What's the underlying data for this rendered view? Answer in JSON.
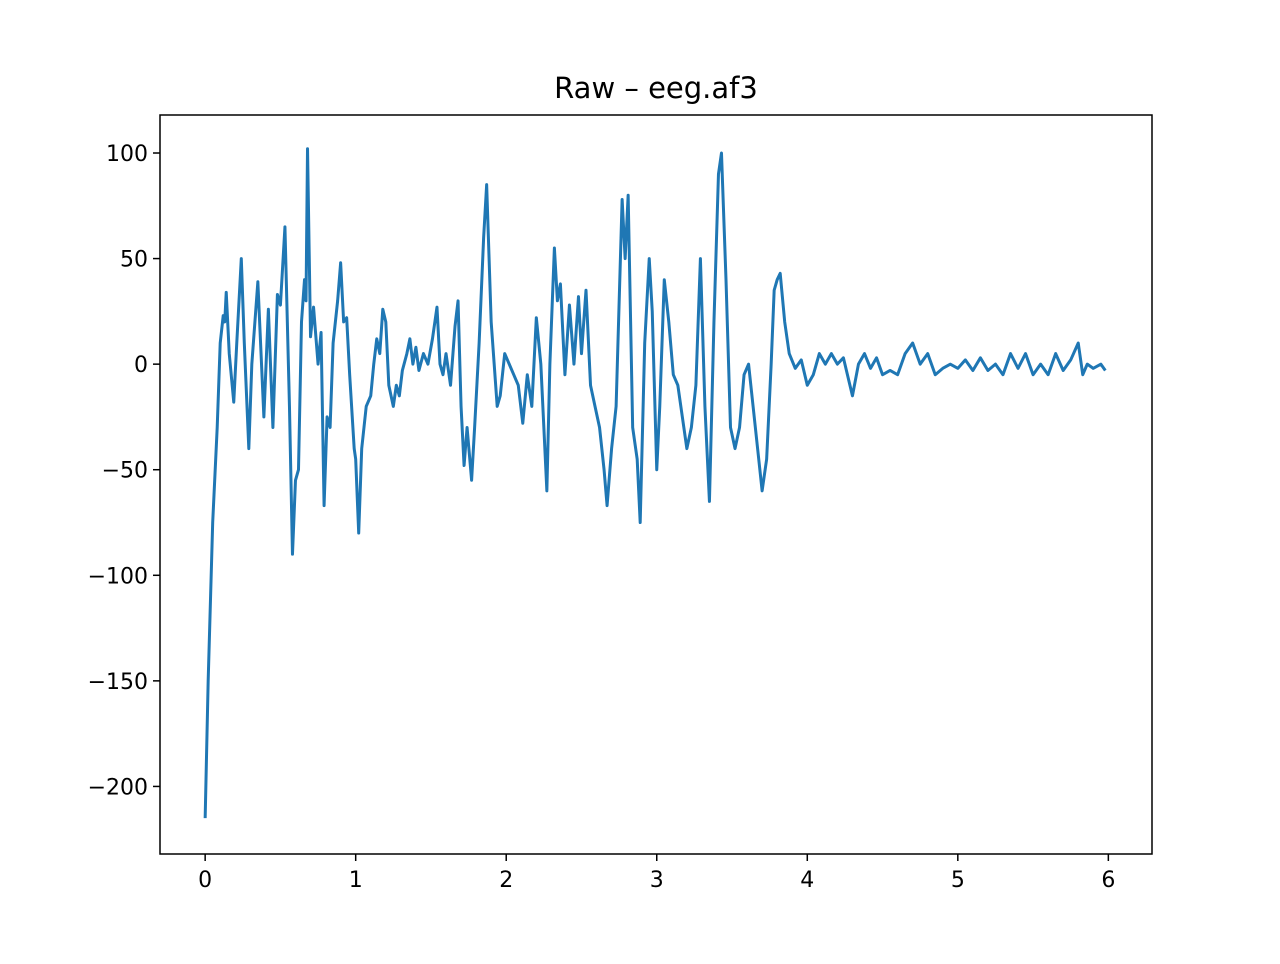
{
  "chart_data": {
    "type": "line",
    "title": "Raw – eeg.af3",
    "x": [
      0,
      0.02,
      0.05,
      0.08,
      0.1,
      0.12,
      0.13,
      0.14,
      0.16,
      0.19,
      0.21,
      0.24,
      0.26,
      0.29,
      0.31,
      0.35,
      0.39,
      0.42,
      0.45,
      0.48,
      0.5,
      0.53,
      0.56,
      0.58,
      0.6,
      0.62,
      0.64,
      0.66,
      0.67,
      0.68,
      0.7,
      0.72,
      0.75,
      0.77,
      0.79,
      0.81,
      0.83,
      0.85,
      0.88,
      0.9,
      0.92,
      0.94,
      0.96,
      0.99,
      1.0,
      1.02,
      1.04,
      1.07,
      1.1,
      1.12,
      1.14,
      1.16,
      1.18,
      1.2,
      1.22,
      1.25,
      1.27,
      1.29,
      1.31,
      1.34,
      1.36,
      1.38,
      1.4,
      1.42,
      1.45,
      1.48,
      1.51,
      1.54,
      1.56,
      1.58,
      1.6,
      1.63,
      1.66,
      1.68,
      1.7,
      1.72,
      1.74,
      1.77,
      1.79,
      1.82,
      1.85,
      1.87,
      1.9,
      1.92,
      1.94,
      1.96,
      1.99,
      2.02,
      2.05,
      2.08,
      2.11,
      2.14,
      2.17,
      2.2,
      2.23,
      2.27,
      2.29,
      2.32,
      2.34,
      2.36,
      2.39,
      2.42,
      2.45,
      2.48,
      2.5,
      2.53,
      2.56,
      2.59,
      2.62,
      2.65,
      2.67,
      2.7,
      2.73,
      2.77,
      2.79,
      2.81,
      2.84,
      2.87,
      2.89,
      2.92,
      2.95,
      2.97,
      3.0,
      3.02,
      3.05,
      3.08,
      3.11,
      3.14,
      3.17,
      3.2,
      3.23,
      3.26,
      3.29,
      3.32,
      3.35,
      3.38,
      3.41,
      3.43,
      3.46,
      3.49,
      3.52,
      3.55,
      3.58,
      3.61,
      3.64,
      3.67,
      3.7,
      3.73,
      3.76,
      3.78,
      3.8,
      3.82,
      3.85,
      3.88,
      3.92,
      3.96,
      4.0,
      4.04,
      4.08,
      4.12,
      4.16,
      4.2,
      4.24,
      4.3,
      4.34,
      4.38,
      4.42,
      4.46,
      4.5,
      4.55,
      4.6,
      4.65,
      4.7,
      4.75,
      4.8,
      4.85,
      4.9,
      4.95,
      5.0,
      5.05,
      5.1,
      5.15,
      5.2,
      5.25,
      5.3,
      5.35,
      5.4,
      5.45,
      5.5,
      5.55,
      5.6,
      5.65,
      5.7,
      5.75,
      5.8,
      5.83,
      5.86,
      5.9,
      5.95,
      5.98
    ],
    "values": [
      -215,
      -150,
      -75,
      -30,
      10,
      23,
      20,
      34,
      5,
      -18,
      10,
      50,
      10,
      -40,
      0,
      39,
      -25,
      26,
      -30,
      33,
      28,
      65,
      -20,
      -90,
      -55,
      -50,
      20,
      40,
      30,
      102,
      13,
      27,
      0,
      15,
      -67,
      -25,
      -30,
      10,
      30,
      48,
      20,
      22,
      -5,
      -40,
      -45,
      -80,
      -40,
      -20,
      -15,
      0,
      12,
      5,
      26,
      20,
      -10,
      -20,
      -10,
      -15,
      -3,
      5,
      12,
      0,
      8,
      -3,
      5,
      0,
      12,
      27,
      0,
      -5,
      5,
      -10,
      18,
      30,
      -20,
      -48,
      -30,
      -55,
      -30,
      10,
      60,
      85,
      20,
      0,
      -20,
      -15,
      5,
      0,
      -5,
      -10,
      -28,
      -5,
      -20,
      22,
      0,
      -60,
      0,
      55,
      30,
      38,
      -5,
      28,
      0,
      32,
      5,
      35,
      -10,
      -20,
      -30,
      -50,
      -67,
      -40,
      -20,
      78,
      50,
      80,
      -30,
      -45,
      -75,
      10,
      50,
      25,
      -50,
      -20,
      40,
      20,
      -5,
      -10,
      -25,
      -40,
      -30,
      -10,
      50,
      -20,
      -65,
      20,
      90,
      100,
      40,
      -30,
      -40,
      -30,
      -5,
      0,
      -20,
      -40,
      -60,
      -45,
      0,
      35,
      40,
      43,
      20,
      5,
      -2,
      2,
      -10,
      -5,
      5,
      0,
      5,
      0,
      3,
      -15,
      0,
      5,
      -2,
      3,
      -5,
      -3,
      -5,
      5,
      10,
      0,
      5,
      -5,
      -2,
      0,
      -2,
      2,
      -3,
      3,
      -3,
      0,
      -5,
      5,
      -2,
      5,
      -5,
      0,
      -5,
      5,
      -3,
      2,
      10,
      -5,
      0,
      -2,
      0,
      -3
    ],
    "color": "#1f77b4",
    "xlim": [
      -0.3,
      6.29
    ],
    "ylim": [
      -232,
      118
    ],
    "xticks": [
      0,
      1,
      2,
      3,
      4,
      5,
      6
    ],
    "yticks": [
      {
        "value": -200,
        "label": "−200"
      },
      {
        "value": -150,
        "label": "−150"
      },
      {
        "value": -100,
        "label": "−100"
      },
      {
        "value": -50,
        "label": "−50"
      },
      0,
      50,
      100
    ]
  }
}
